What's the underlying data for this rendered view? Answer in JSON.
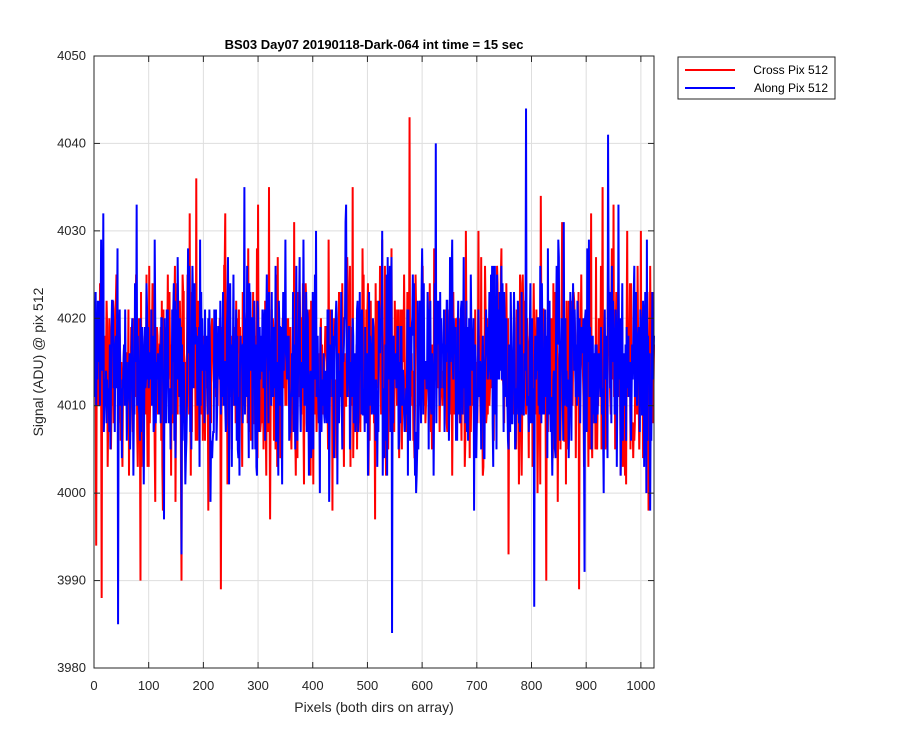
{
  "chart_data": {
    "type": "line",
    "title": "BS03 Day07 20190118-Dark-064 int time = 15 sec",
    "xlabel": "Pixels (both dirs on array)",
    "ylabel": "Signal (ADU) @ pix 512",
    "xlim": [
      0,
      1024
    ],
    "ylim": [
      3980,
      4050
    ],
    "xticks": [
      0,
      100,
      200,
      300,
      400,
      500,
      600,
      700,
      800,
      900,
      1000
    ],
    "yticks": [
      3980,
      3990,
      4000,
      4010,
      4020,
      4030,
      4040,
      4050
    ],
    "grid": true,
    "legend_position": "outside-top-right",
    "series": [
      {
        "name": "Cross Pix 512",
        "color": "#ff0000",
        "x_start": 1,
        "x_end": 1024,
        "mean": 4014,
        "spread": 6.5,
        "min": 3988,
        "max": 4043,
        "notable_points": [
          {
            "x": 4,
            "y": 3994
          },
          {
            "x": 14,
            "y": 3988
          },
          {
            "x": 85,
            "y": 3990
          },
          {
            "x": 160,
            "y": 3990
          },
          {
            "x": 187,
            "y": 4036
          },
          {
            "x": 232,
            "y": 3989
          },
          {
            "x": 320,
            "y": 4035
          },
          {
            "x": 473,
            "y": 4035
          },
          {
            "x": 577,
            "y": 4043
          },
          {
            "x": 758,
            "y": 3993
          },
          {
            "x": 827,
            "y": 3990
          },
          {
            "x": 887,
            "y": 3989
          },
          {
            "x": 930,
            "y": 4035
          }
        ]
      },
      {
        "name": "Along Pix 512",
        "color": "#0000ff",
        "x_start": 1,
        "x_end": 1024,
        "mean": 4014,
        "spread": 6.5,
        "min": 3984,
        "max": 4044,
        "notable_points": [
          {
            "x": 17,
            "y": 4032
          },
          {
            "x": 44,
            "y": 3985
          },
          {
            "x": 160,
            "y": 3993
          },
          {
            "x": 275,
            "y": 4035
          },
          {
            "x": 545,
            "y": 3984
          },
          {
            "x": 625,
            "y": 4040
          },
          {
            "x": 790,
            "y": 4044
          },
          {
            "x": 805,
            "y": 3987
          },
          {
            "x": 897,
            "y": 3991
          },
          {
            "x": 940,
            "y": 4041
          }
        ]
      }
    ]
  }
}
